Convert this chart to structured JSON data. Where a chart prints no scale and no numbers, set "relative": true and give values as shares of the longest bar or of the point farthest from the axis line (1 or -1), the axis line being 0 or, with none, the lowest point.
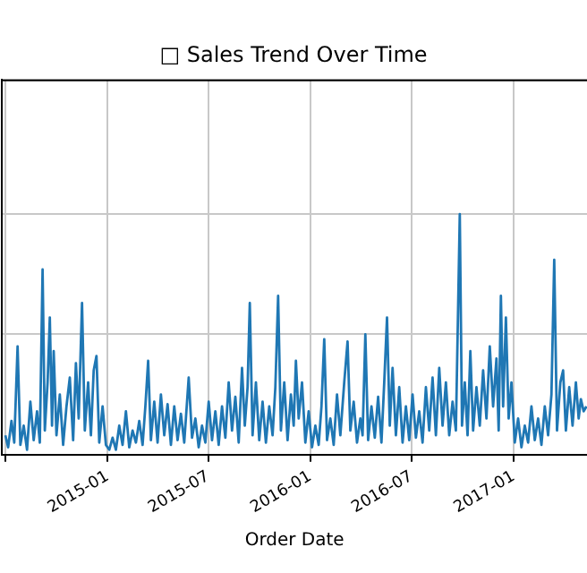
{
  "chart_data": {
    "type": "line",
    "title": "□ Sales Trend Over Time",
    "xlabel": "Order Date",
    "relative": true,
    "grid": true,
    "legend": false,
    "marker": "none",
    "line_style": "solid",
    "xlim": [
      "2014-06-25",
      "2017-05-13"
    ],
    "xticks": [
      {
        "value": "2014-07",
        "label": null
      },
      "2015-01",
      "2015-07",
      "2016-01",
      "2016-07",
      "2017-01"
    ],
    "x": [
      "2014-07-01",
      "2014-07-06",
      "2014-07-12",
      "2014-07-17",
      "2014-07-23",
      "2014-07-28",
      "2014-08-03",
      "2014-08-09",
      "2014-08-15",
      "2014-08-21",
      "2014-08-27",
      "2014-09-01",
      "2014-09-06",
      "2014-09-10",
      "2014-09-15",
      "2014-09-19",
      "2014-09-23",
      "2014-09-26",
      "2014-10-01",
      "2014-10-07",
      "2014-10-13",
      "2014-10-19",
      "2014-10-25",
      "2014-10-31",
      "2014-11-05",
      "2014-11-10",
      "2014-11-16",
      "2014-11-21",
      "2014-11-27",
      "2014-12-02",
      "2014-12-07",
      "2014-12-12",
      "2014-12-17",
      "2014-12-23",
      "2014-12-29",
      "2015-01-04",
      "2015-01-10",
      "2015-01-16",
      "2015-01-22",
      "2015-01-28",
      "2015-02-03",
      "2015-02-09",
      "2015-02-15",
      "2015-02-21",
      "2015-02-27",
      "2015-03-05",
      "2015-03-10",
      "2015-03-15",
      "2015-03-20",
      "2015-03-26",
      "2015-04-01",
      "2015-04-07",
      "2015-04-13",
      "2015-04-19",
      "2015-04-25",
      "2015-05-01",
      "2015-05-07",
      "2015-05-13",
      "2015-05-19",
      "2015-05-27",
      "2015-06-02",
      "2015-06-08",
      "2015-06-14",
      "2015-06-20",
      "2015-06-26",
      "2015-07-02",
      "2015-07-08",
      "2015-07-14",
      "2015-07-20",
      "2015-07-26",
      "2015-08-01",
      "2015-08-07",
      "2015-08-13",
      "2015-08-19",
      "2015-08-25",
      "2015-08-31",
      "2015-09-05",
      "2015-09-10",
      "2015-09-14",
      "2015-09-19",
      "2015-09-25",
      "2015-10-01",
      "2015-10-07",
      "2015-10-13",
      "2015-10-19",
      "2015-10-25",
      "2015-10-30",
      "2015-11-04",
      "2015-11-09",
      "2015-11-15",
      "2015-11-21",
      "2015-11-27",
      "2015-12-02",
      "2015-12-06",
      "2015-12-11",
      "2015-12-17",
      "2015-12-23",
      "2015-12-29",
      "2016-01-04",
      "2016-01-10",
      "2016-01-16",
      "2016-01-21",
      "2016-01-26",
      "2016-01-31",
      "2016-02-06",
      "2016-02-12",
      "2016-02-18",
      "2016-02-24",
      "2016-03-02",
      "2016-03-08",
      "2016-03-13",
      "2016-03-19",
      "2016-03-25",
      "2016-03-31",
      "2016-04-04",
      "2016-04-09",
      "2016-04-14",
      "2016-04-20",
      "2016-04-26",
      "2016-05-02",
      "2016-05-08",
      "2016-05-13",
      "2016-05-18",
      "2016-05-23",
      "2016-05-28",
      "2016-06-03",
      "2016-06-09",
      "2016-06-15",
      "2016-06-21",
      "2016-06-27",
      "2016-07-03",
      "2016-07-09",
      "2016-07-15",
      "2016-07-21",
      "2016-07-27",
      "2016-08-02",
      "2016-08-08",
      "2016-08-14",
      "2016-08-20",
      "2016-08-26",
      "2016-09-01",
      "2016-09-07",
      "2016-09-13",
      "2016-09-19",
      "2016-09-26",
      "2016-09-30",
      "2016-10-05",
      "2016-10-10",
      "2016-10-15",
      "2016-10-20",
      "2016-10-26",
      "2016-11-01",
      "2016-11-07",
      "2016-11-13",
      "2016-11-19",
      "2016-11-25",
      "2016-12-01",
      "2016-12-05",
      "2016-12-09",
      "2016-12-13",
      "2016-12-18",
      "2016-12-23",
      "2016-12-28",
      "2017-01-03",
      "2017-01-09",
      "2017-01-15",
      "2017-01-21",
      "2017-01-27",
      "2017-02-02",
      "2017-02-08",
      "2017-02-14",
      "2017-02-20",
      "2017-02-26",
      "2017-03-04",
      "2017-03-10",
      "2017-03-15",
      "2017-03-20",
      "2017-03-26",
      "2017-03-31",
      "2017-04-05",
      "2017-04-11",
      "2017-04-17",
      "2017-04-23",
      "2017-04-28",
      "2017-05-02",
      "2017-05-07",
      "2017-05-12"
    ],
    "series": [
      {
        "color": "#1f77b4",
        "values": [
          0.08,
          0.03,
          0.14,
          0.05,
          0.45,
          0.04,
          0.12,
          0.02,
          0.22,
          0.06,
          0.18,
          0.05,
          0.77,
          0.1,
          0.3,
          0.57,
          0.12,
          0.43,
          0.08,
          0.25,
          0.04,
          0.2,
          0.32,
          0.06,
          0.38,
          0.15,
          0.63,
          0.1,
          0.3,
          0.08,
          0.35,
          0.41,
          0.05,
          0.2,
          0.04,
          0.02,
          0.07,
          0.02,
          0.12,
          0.04,
          0.18,
          0.03,
          0.1,
          0.05,
          0.14,
          0.04,
          0.2,
          0.39,
          0.06,
          0.22,
          0.05,
          0.25,
          0.08,
          0.21,
          0.04,
          0.2,
          0.06,
          0.17,
          0.05,
          0.32,
          0.07,
          0.15,
          0.03,
          0.12,
          0.05,
          0.22,
          0.06,
          0.18,
          0.04,
          0.2,
          0.07,
          0.3,
          0.1,
          0.24,
          0.05,
          0.36,
          0.12,
          0.28,
          0.63,
          0.08,
          0.3,
          0.06,
          0.22,
          0.05,
          0.2,
          0.08,
          0.28,
          0.66,
          0.1,
          0.3,
          0.06,
          0.25,
          0.12,
          0.39,
          0.15,
          0.3,
          0.05,
          0.18,
          0.03,
          0.12,
          0.04,
          0.2,
          0.48,
          0.06,
          0.15,
          0.04,
          0.25,
          0.08,
          0.3,
          0.47,
          0.1,
          0.22,
          0.05,
          0.15,
          0.08,
          0.5,
          0.06,
          0.2,
          0.07,
          0.24,
          0.05,
          0.3,
          0.57,
          0.12,
          0.36,
          0.08,
          0.28,
          0.05,
          0.2,
          0.06,
          0.25,
          0.07,
          0.18,
          0.05,
          0.28,
          0.1,
          0.32,
          0.08,
          0.36,
          0.12,
          0.3,
          0.08,
          0.22,
          0.1,
          1,
          0.12,
          0.3,
          0.08,
          0.43,
          0.1,
          0.28,
          0.12,
          0.35,
          0.15,
          0.45,
          0.2,
          0.4,
          0.1,
          0.66,
          0.2,
          0.57,
          0.15,
          0.3,
          0.05,
          0.15,
          0.03,
          0.12,
          0.05,
          0.2,
          0.06,
          0.15,
          0.04,
          0.2,
          0.08,
          0.25,
          0.81,
          0.1,
          0.3,
          0.35,
          0.1,
          0.28,
          0.12,
          0.3,
          0.15,
          0.23,
          0.18,
          0.2
        ]
      }
    ]
  }
}
